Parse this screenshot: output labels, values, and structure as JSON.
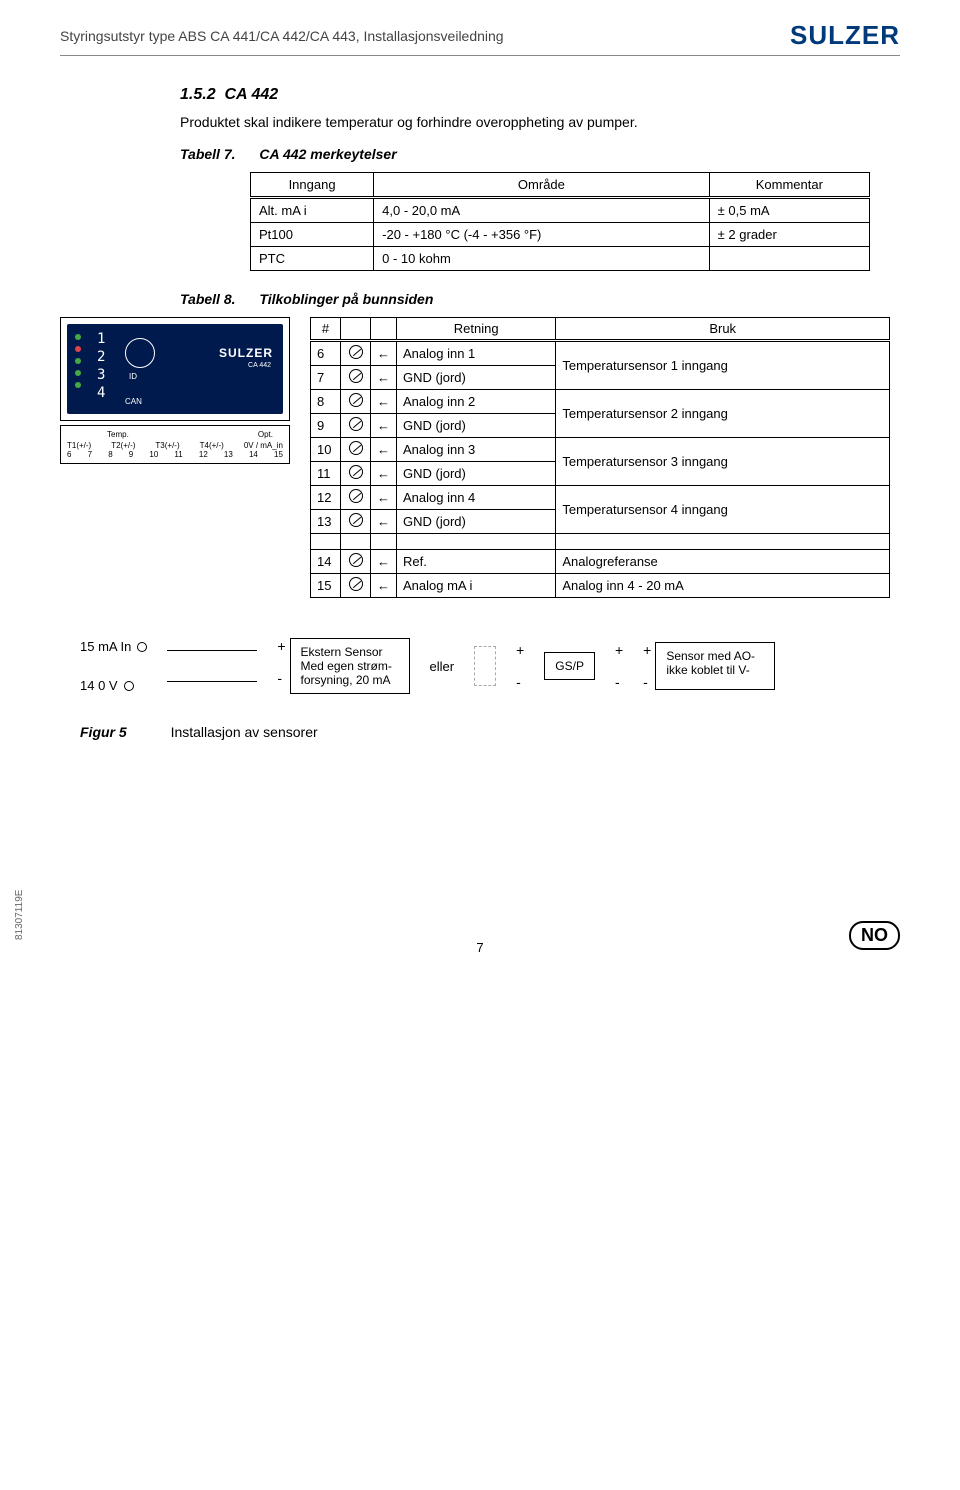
{
  "header": {
    "title": "Styringsutstyr type ABS CA 441/CA 442/CA 443, Installasjonsveiledning",
    "logo": "SULZER"
  },
  "section": {
    "number": "1.5.2",
    "title": "CA 442",
    "intro": "Produktet skal indikere temperatur og forhindre overoppheting av pumper."
  },
  "table7": {
    "caption_label": "Tabell 7.",
    "caption_text": "CA 442 merkeytelser",
    "headers": [
      "Inngang",
      "Område",
      "Kommentar"
    ],
    "rows": [
      [
        "Alt. mA i",
        "4,0 - 20,0 mA",
        "± 0,5 mA"
      ],
      [
        "Pt100",
        "-20 - +180 °C (-4 - +356 °F)",
        "± 2 grader"
      ],
      [
        "PTC",
        "0 - 10 kohm",
        ""
      ]
    ]
  },
  "table8": {
    "caption_label": "Tabell 8.",
    "caption_text": "Tilkoblinger på bunnsiden",
    "headers": [
      "#",
      "",
      "",
      "Retning",
      "Bruk"
    ],
    "rows": [
      {
        "n": "6",
        "dir": "←",
        "ret": "Analog inn 1",
        "use": "Temperatursensor 1 inngang",
        "span": 2
      },
      {
        "n": "7",
        "dir": "←",
        "ret": "GND (jord)"
      },
      {
        "n": "8",
        "dir": "←",
        "ret": "Analog inn 2",
        "use": "Temperatursensor 2 inngang",
        "span": 2
      },
      {
        "n": "9",
        "dir": "←",
        "ret": "GND (jord)"
      },
      {
        "n": "10",
        "dir": "←",
        "ret": "Analog inn 3",
        "use": "Temperatursensor 3 inngang",
        "span": 2
      },
      {
        "n": "11",
        "dir": "←",
        "ret": "GND (jord)"
      },
      {
        "n": "12",
        "dir": "←",
        "ret": "Analog inn 4",
        "use": "Temperatursensor 4 inngang",
        "span": 2
      },
      {
        "n": "13",
        "dir": "←",
        "ret": "GND (jord)"
      }
    ],
    "rows2": [
      {
        "n": "14",
        "dir": "←",
        "ret": "Ref.",
        "use": "Analogreferanse"
      },
      {
        "n": "15",
        "dir": "←",
        "ret": "Analog mA i",
        "use": "Analog inn 4 - 20 mA"
      }
    ]
  },
  "device": {
    "brand": "SULZER",
    "model": "CA 442",
    "id_label": "ID",
    "can_label": "CAN",
    "digits": [
      "1",
      "2",
      "3",
      "4"
    ],
    "term_label_left": "Temp.",
    "term_label_right": "Opt.",
    "term_t": [
      "T1(+/-)",
      "T2(+/-)",
      "T3(+/-)",
      "T4(+/-)",
      "0V / mA_in"
    ],
    "term_n": [
      "6",
      "7",
      "8",
      "9",
      "10",
      "11",
      "12",
      "13",
      "14",
      "15"
    ]
  },
  "wiring": {
    "left_top": "15 mA In",
    "left_bot": "14 0 V",
    "box1_line1": "Ekstern Sensor",
    "box1_line2": "Med egen strøm-",
    "box1_line3": "forsyning, 20 mA",
    "or_label": "eller",
    "box2": "GS/P",
    "box3_line1": "Sensor med AO-",
    "box3_line2": "ikke koblet til V-"
  },
  "figure": {
    "label": "Figur 5",
    "text": "Installasjon av sensorer"
  },
  "footer": {
    "doc_id": "81307119E",
    "badge": "NO",
    "page": "7"
  }
}
